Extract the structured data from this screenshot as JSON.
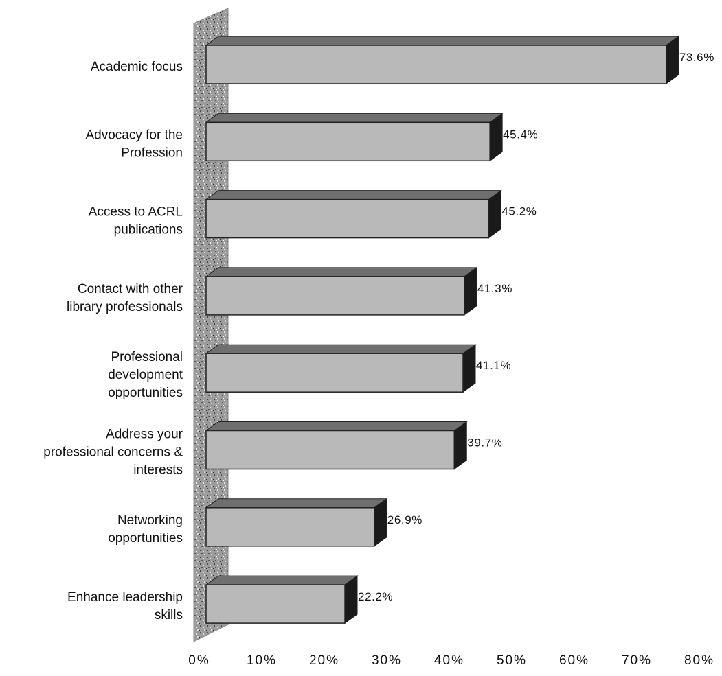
{
  "chart_data": {
    "type": "bar",
    "orientation": "horizontal",
    "style": "3d",
    "categories": [
      [
        "Academic focus"
      ],
      [
        "Advocacy for the",
        "Profession"
      ],
      [
        "Access to ACRL",
        "publications"
      ],
      [
        "Contact with other",
        "library  professionals"
      ],
      [
        "Professional",
        "development",
        "opportunities"
      ],
      [
        "Address your",
        "professional concerns &",
        "interests"
      ],
      [
        "Networking",
        "opportunities"
      ],
      [
        "Enhance leadership",
        "skills"
      ]
    ],
    "values": [
      73.6,
      45.4,
      45.2,
      41.3,
      41.1,
      39.7,
      26.9,
      22.2
    ],
    "value_labels": [
      "73.6%",
      "45.4%",
      "45.2%",
      "41.3%",
      "41.1%",
      "39.7%",
      "26.9%",
      "22.2%"
    ],
    "xlim": [
      0,
      80
    ],
    "xticks": [
      "0%",
      "10%",
      "20%",
      "30%",
      "40%",
      "50%",
      "60%",
      "70%",
      "80%"
    ],
    "title": "",
    "xlabel": "",
    "ylabel": "",
    "grid": false,
    "legend": "none",
    "colors": {
      "bar_front": "#b9b9b9",
      "bar_top": "#6f6f6f",
      "bar_side": "#1a1a1a",
      "bar_outline": "#222222",
      "wall": "#9a9a9a"
    }
  }
}
